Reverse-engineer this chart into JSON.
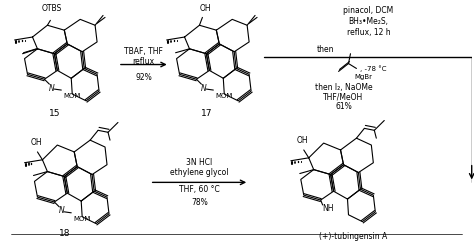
{
  "background_color": "#ffffff",
  "fig_width": 4.74,
  "fig_height": 2.42,
  "dpi": 100,
  "text_color": "#000000",
  "line_color": "#000000",
  "reagents": {
    "r1_lines": [
      "TBAF, THF",
      "reflux"
    ],
    "r1_yield": "92%",
    "r2_lines": [
      "pinacol, DCM",
      "BH₃•Me₂S,",
      "reflux, 12 h"
    ],
    "r2_then": "then",
    "r2_temp": ", -78 °C",
    "r2_mgbr": "MgBr",
    "r2_then2": "then I₂, NaOMe",
    "r2_solv": "THF/MeOH",
    "r2_yield": "61%",
    "r3_lines": [
      "3N HCl",
      "ethylene glycol"
    ],
    "r3_cond": "THF, 60 °C",
    "r3_yield": "78%"
  },
  "labels": {
    "c15": "15",
    "c17": "17",
    "c18": "18",
    "product": "(+)-tubingensin A",
    "OTBS": "OTBS",
    "OH_17": "OH",
    "OH_18": "OH",
    "OH_prod": "OH",
    "N_15": "N",
    "MOM_15": "MOM",
    "N_17": "N",
    "MOM_17": "MOM",
    "N_18": "N",
    "MOM_18": "MOM",
    "NH_prod": "NH"
  }
}
